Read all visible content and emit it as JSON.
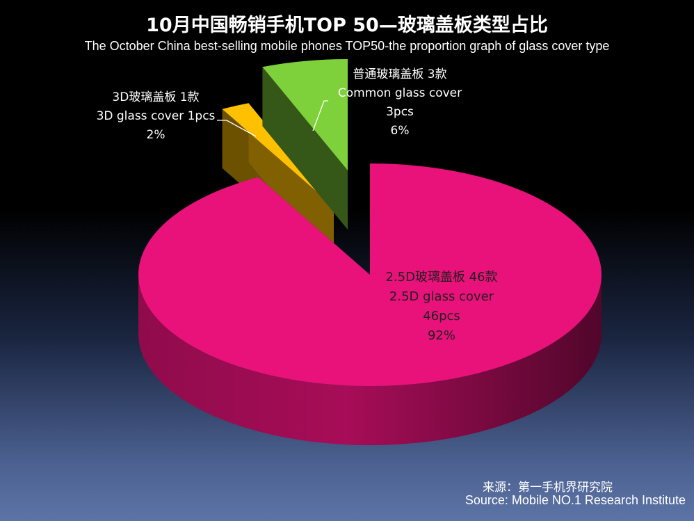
{
  "title": "10月中国畅销手机TOP 50—玻璃盖板类型占比",
  "subtitle": "The October China best-selling mobile phones TOP50-the proportion graph of glass cover type",
  "source": {
    "cn": "来源：第一手机界研究院",
    "en": "Source: Mobile NO.1 Research Institute"
  },
  "chart_data": {
    "type": "pie",
    "style": "3d-exploded",
    "title": "10月中国畅销手机TOP 50—玻璃盖板类型占比",
    "subtitle": "The October China best-selling mobile phones TOP50-the proportion graph of glass cover type",
    "slices": [
      {
        "name_cn": "2.5D玻璃盖板 46款",
        "name_en": "2.5D glass cover",
        "count": "46pcs",
        "percent": "92%",
        "value": 46,
        "color": "#e8127a"
      },
      {
        "name_cn": "3D玻璃盖板 1款",
        "name_en": "3D glass cover 1pcs",
        "count": "",
        "percent": "2%",
        "value": 1,
        "color": "#ffc000"
      },
      {
        "name_cn": "普通玻璃盖板 3款",
        "name_en": "Common glass cover",
        "count": "3pcs",
        "percent": "6%",
        "value": 3,
        "color": "#7ed13a"
      }
    ]
  }
}
